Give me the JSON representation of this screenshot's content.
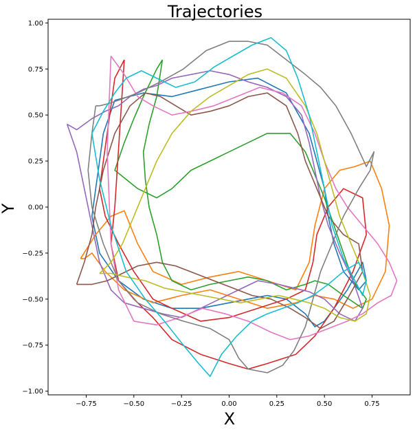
{
  "chart_data": {
    "type": "line",
    "title": "Trajectories",
    "xlabel": "X",
    "ylabel": "Y",
    "xlim": [
      -0.95,
      0.95
    ],
    "ylim": [
      -1.02,
      1.02
    ],
    "xticks": [
      -0.75,
      -0.5,
      -0.25,
      0.0,
      0.25,
      0.5,
      0.75
    ],
    "xtick_labels": [
      "−0.75",
      "−0.50",
      "−0.25",
      "0.00",
      "0.25",
      "0.50",
      "0.75"
    ],
    "yticks": [
      -1.0,
      -0.75,
      -0.5,
      -0.25,
      0.0,
      0.25,
      0.5,
      0.75,
      1.0
    ],
    "ytick_labels": [
      "−1.00",
      "−0.75",
      "−0.50",
      "−0.25",
      "0.00",
      "0.25",
      "0.50",
      "0.75",
      "1.00"
    ],
    "grid": false,
    "legend": "none",
    "series": [
      {
        "color": "#1f77b4",
        "x": [
          -0.6,
          -0.45,
          -0.3,
          -0.15,
          0.0,
          0.15,
          0.3,
          0.42,
          0.46,
          0.5,
          0.52,
          0.55,
          0.6,
          0.68,
          0.72,
          0.7,
          0.62,
          0.55,
          0.5,
          0.45,
          0.4,
          0.3,
          0.2,
          0.1,
          0.0,
          -0.15,
          -0.3,
          -0.45,
          -0.58,
          -0.68,
          -0.72,
          -0.7,
          -0.68,
          -0.66,
          -0.62,
          -0.6
        ],
        "y": [
          0.58,
          0.62,
          0.6,
          0.64,
          0.68,
          0.7,
          0.62,
          0.4,
          0.25,
          0.1,
          -0.05,
          -0.2,
          -0.35,
          -0.45,
          -0.4,
          -0.3,
          -0.45,
          -0.55,
          -0.62,
          -0.65,
          -0.58,
          -0.5,
          -0.48,
          -0.5,
          -0.52,
          -0.55,
          -0.55,
          -0.5,
          -0.4,
          -0.25,
          -0.05,
          0.1,
          0.25,
          0.4,
          0.52,
          0.58
        ]
      },
      {
        "color": "#ff7f0e",
        "x": [
          -0.78,
          -0.7,
          -0.62,
          -0.55,
          -0.48,
          -0.4,
          -0.25,
          -0.1,
          0.05,
          0.2,
          0.35,
          0.42,
          0.45,
          0.5,
          0.58,
          0.66,
          0.74,
          0.8,
          0.84,
          0.82,
          0.75,
          0.65,
          0.55,
          0.45,
          0.35,
          0.2,
          0.05,
          -0.1,
          -0.25,
          -0.4,
          -0.55,
          -0.65,
          -0.72,
          -0.76,
          -0.78
        ],
        "y": [
          -0.28,
          -0.15,
          -0.05,
          -0.02,
          -0.2,
          -0.35,
          -0.42,
          -0.38,
          -0.35,
          -0.4,
          -0.45,
          -0.3,
          -0.1,
          0.1,
          0.2,
          0.22,
          0.25,
          0.1,
          -0.1,
          -0.35,
          -0.5,
          -0.55,
          -0.5,
          -0.48,
          -0.52,
          -0.55,
          -0.5,
          -0.45,
          -0.48,
          -0.52,
          -0.45,
          -0.35,
          -0.25,
          -0.28,
          -0.28
        ]
      },
      {
        "color": "#2ca02c",
        "x": [
          -0.35,
          -0.38,
          -0.45,
          -0.5,
          -0.55,
          -0.6,
          -0.48,
          -0.38,
          -0.3,
          -0.2,
          -0.1,
          0.0,
          0.1,
          0.2,
          0.32,
          0.4,
          0.46,
          0.5,
          0.55,
          0.6,
          0.65,
          0.72,
          0.7,
          0.6,
          0.52,
          0.45,
          0.4,
          0.3,
          0.2,
          0.1,
          0.0,
          -0.1,
          -0.2,
          -0.3,
          -0.35,
          -0.38,
          -0.42,
          -0.44,
          -0.45,
          -0.42,
          -0.38,
          -0.35
        ],
        "y": [
          0.8,
          0.75,
          0.6,
          0.48,
          0.35,
          0.2,
          0.1,
          0.05,
          0.1,
          0.2,
          0.25,
          0.3,
          0.35,
          0.4,
          0.4,
          0.3,
          0.15,
          0.05,
          -0.1,
          -0.25,
          -0.4,
          -0.5,
          -0.55,
          -0.48,
          -0.42,
          -0.4,
          -0.42,
          -0.45,
          -0.4,
          -0.38,
          -0.4,
          -0.42,
          -0.45,
          -0.4,
          -0.3,
          -0.15,
          0.0,
          0.15,
          0.3,
          0.45,
          0.6,
          0.8
        ]
      },
      {
        "color": "#d62728",
        "x": [
          -0.55,
          -0.6,
          -0.62,
          -0.64,
          -0.66,
          -0.68,
          -0.65,
          -0.58,
          -0.5,
          -0.4,
          -0.3,
          -0.15,
          0.0,
          0.15,
          0.3,
          0.4,
          0.44,
          0.46,
          0.52,
          0.6,
          0.7,
          0.72,
          0.65,
          0.55,
          0.45,
          0.35,
          0.2,
          0.1,
          0.0,
          -0.15,
          -0.3,
          -0.4,
          -0.5,
          -0.58,
          -0.62,
          -0.6,
          -0.55
        ],
        "y": [
          0.8,
          0.7,
          0.55,
          0.4,
          0.25,
          0.1,
          -0.05,
          -0.2,
          -0.35,
          -0.5,
          -0.55,
          -0.62,
          -0.6,
          -0.55,
          -0.5,
          -0.45,
          -0.3,
          -0.15,
          0.0,
          0.1,
          0.05,
          -0.15,
          -0.35,
          -0.55,
          -0.7,
          -0.8,
          -0.85,
          -0.88,
          -0.85,
          -0.8,
          -0.72,
          -0.6,
          -0.5,
          -0.4,
          -0.2,
          0.0,
          0.8
        ]
      },
      {
        "color": "#9467bd",
        "x": [
          -0.85,
          -0.8,
          -0.72,
          -0.65,
          -0.58,
          -0.52,
          -0.45,
          -0.38,
          -0.3,
          -0.2,
          -0.1,
          0.0,
          0.1,
          0.2,
          0.3,
          0.38,
          0.42,
          0.45,
          0.48,
          0.52,
          0.58,
          0.65,
          0.7,
          0.66,
          0.58,
          0.5,
          0.42,
          0.34,
          0.26,
          0.15,
          0.05,
          -0.05,
          -0.15,
          -0.25,
          -0.35,
          -0.45,
          -0.55,
          -0.62,
          -0.68,
          -0.72,
          -0.76,
          -0.8,
          -0.85
        ],
        "y": [
          0.45,
          0.42,
          0.48,
          0.52,
          0.55,
          0.6,
          0.64,
          0.66,
          0.7,
          0.72,
          0.74,
          0.72,
          0.68,
          0.65,
          0.6,
          0.5,
          0.35,
          0.2,
          0.05,
          -0.1,
          -0.25,
          -0.4,
          -0.55,
          -0.62,
          -0.58,
          -0.5,
          -0.46,
          -0.44,
          -0.42,
          -0.4,
          -0.45,
          -0.5,
          -0.55,
          -0.6,
          -0.58,
          -0.55,
          -0.52,
          -0.45,
          -0.3,
          -0.1,
          0.1,
          0.3,
          0.45
        ]
      },
      {
        "color": "#8c564b",
        "x": [
          -0.8,
          -0.76,
          -0.72,
          -0.7,
          -0.66,
          -0.6,
          -0.52,
          -0.44,
          -0.36,
          -0.28,
          -0.2,
          -0.1,
          0.0,
          0.1,
          0.2,
          0.3,
          0.36,
          0.4,
          0.46,
          0.52,
          0.6,
          0.68,
          0.7,
          0.62,
          0.55,
          0.48,
          0.4,
          0.32,
          0.22,
          0.12,
          0.02,
          -0.08,
          -0.18,
          -0.28,
          -0.38,
          -0.48,
          -0.56,
          -0.64,
          -0.72,
          -0.78,
          -0.8
        ],
        "y": [
          -0.42,
          -0.3,
          -0.15,
          0.0,
          0.2,
          0.4,
          0.55,
          0.62,
          0.6,
          0.55,
          0.5,
          0.52,
          0.55,
          0.6,
          0.62,
          0.55,
          0.4,
          0.25,
          0.1,
          -0.05,
          -0.15,
          -0.2,
          -0.35,
          -0.5,
          -0.62,
          -0.66,
          -0.6,
          -0.55,
          -0.5,
          -0.48,
          -0.44,
          -0.4,
          -0.36,
          -0.32,
          -0.3,
          -0.32,
          -0.36,
          -0.4,
          -0.42,
          -0.42,
          -0.42
        ]
      },
      {
        "color": "#e377c2",
        "x": [
          -0.62,
          -0.55,
          -0.48,
          -0.4,
          -0.3,
          -0.2,
          -0.08,
          0.04,
          0.16,
          0.28,
          0.38,
          0.45,
          0.5,
          0.56,
          0.62,
          0.7,
          0.78,
          0.84,
          0.88,
          0.85,
          0.78,
          0.7,
          0.62,
          0.52,
          0.42,
          0.32,
          0.22,
          0.1,
          -0.02,
          -0.14,
          -0.26,
          -0.38,
          -0.5,
          -0.58,
          -0.62,
          -0.64,
          -0.62
        ],
        "y": [
          0.82,
          0.72,
          0.6,
          0.55,
          0.5,
          0.52,
          0.55,
          0.6,
          0.65,
          0.62,
          0.55,
          0.4,
          0.25,
          0.1,
          0.0,
          -0.1,
          -0.2,
          -0.3,
          -0.4,
          -0.48,
          -0.52,
          -0.58,
          -0.62,
          -0.66,
          -0.7,
          -0.72,
          -0.68,
          -0.62,
          -0.58,
          -0.55,
          -0.6,
          -0.64,
          -0.62,
          -0.45,
          -0.2,
          0.3,
          0.82
        ]
      },
      {
        "color": "#7f7f7f",
        "x": [
          -0.7,
          -0.72,
          -0.74,
          -0.72,
          -0.66,
          -0.58,
          -0.48,
          -0.36,
          -0.24,
          -0.1,
          0.0,
          0.05,
          0.1,
          0.2,
          0.28,
          0.34,
          0.4,
          0.44,
          0.48,
          0.54,
          0.6,
          0.68,
          0.74,
          0.76,
          0.72,
          0.64,
          0.56,
          0.48,
          0.4,
          0.3,
          0.2,
          0.1,
          0.0,
          -0.12,
          -0.24,
          -0.36,
          -0.48,
          -0.58,
          -0.64,
          -0.68,
          -0.7
        ],
        "y": [
          0.55,
          0.4,
          0.2,
          0.0,
          -0.2,
          -0.4,
          -0.52,
          -0.58,
          -0.62,
          -0.66,
          -0.72,
          -0.82,
          -0.88,
          -0.9,
          -0.86,
          -0.78,
          -0.65,
          -0.5,
          -0.35,
          -0.2,
          -0.05,
          0.1,
          0.2,
          0.3,
          0.22,
          0.4,
          0.55,
          0.65,
          0.72,
          0.8,
          0.88,
          0.9,
          0.9,
          0.85,
          0.75,
          0.68,
          0.62,
          0.58,
          0.56,
          0.55,
          0.55
        ]
      },
      {
        "color": "#bcbd22",
        "x": [
          -0.68,
          -0.62,
          -0.56,
          -0.5,
          -0.44,
          -0.38,
          -0.3,
          -0.2,
          -0.1,
          0.0,
          0.1,
          0.2,
          0.3,
          0.4,
          0.46,
          0.5,
          0.54,
          0.58,
          0.64,
          0.7,
          0.74,
          0.72,
          0.66,
          0.58,
          0.5,
          0.42,
          0.34,
          0.26,
          0.16,
          0.06,
          -0.04,
          -0.14,
          -0.24,
          -0.34,
          -0.44,
          -0.54,
          -0.62,
          -0.66,
          -0.68
        ],
        "y": [
          -0.36,
          -0.3,
          -0.2,
          -0.05,
          0.1,
          0.25,
          0.4,
          0.52,
          0.6,
          0.66,
          0.72,
          0.75,
          0.7,
          0.55,
          0.4,
          0.25,
          0.1,
          -0.05,
          -0.2,
          -0.35,
          -0.48,
          -0.58,
          -0.62,
          -0.6,
          -0.55,
          -0.52,
          -0.5,
          -0.48,
          -0.5,
          -0.52,
          -0.5,
          -0.48,
          -0.46,
          -0.44,
          -0.4,
          -0.38,
          -0.36,
          -0.36,
          -0.36
        ]
      },
      {
        "color": "#17becf",
        "x": [
          -0.72,
          -0.66,
          -0.6,
          -0.54,
          -0.46,
          -0.38,
          -0.28,
          -0.18,
          -0.08,
          0.02,
          0.12,
          0.22,
          0.3,
          0.36,
          0.42,
          0.46,
          0.5,
          0.54,
          0.6,
          0.66,
          0.7,
          0.72,
          0.68,
          0.6,
          0.52,
          0.44,
          0.36,
          0.28,
          0.2,
          0.12,
          0.04,
          -0.04,
          -0.1,
          -0.16,
          -0.24,
          -0.34,
          -0.44,
          -0.54,
          -0.62,
          -0.68,
          -0.72
        ],
        "y": [
          0.4,
          0.52,
          0.62,
          0.7,
          0.74,
          0.7,
          0.65,
          0.68,
          0.76,
          0.82,
          0.88,
          0.92,
          0.85,
          0.7,
          0.5,
          0.3,
          0.1,
          -0.1,
          -0.28,
          -0.4,
          -0.48,
          -0.4,
          -0.3,
          -0.35,
          -0.42,
          -0.48,
          -0.52,
          -0.55,
          -0.58,
          -0.62,
          -0.7,
          -0.8,
          -0.92,
          -0.85,
          -0.75,
          -0.62,
          -0.5,
          -0.35,
          -0.1,
          0.15,
          0.4
        ]
      }
    ]
  }
}
